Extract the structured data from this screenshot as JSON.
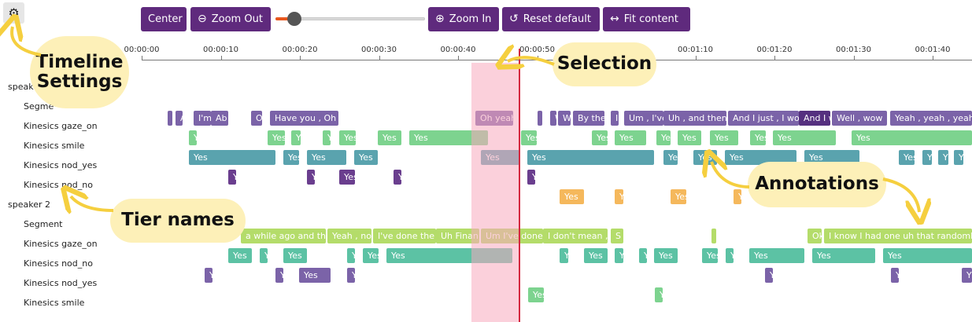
{
  "toolbar": {
    "settings_icon": "gear-icon",
    "center_label": "Center",
    "zoom_out_label": "Zoom Out",
    "zoom_in_label": "Zoom In",
    "reset_label": "Reset default",
    "fit_label": "Fit content",
    "zoom_level": 0.1
  },
  "axis": {
    "ticks": [
      "00:00:00",
      "00:00:10",
      "00:00:20",
      "00:00:30",
      "00:00:40",
      "00:00:50",
      "00:01:00",
      "00:01:10",
      "00:01:20",
      "00:01:30",
      "00:01:40"
    ]
  },
  "colors": {
    "segment": "#7b63a8",
    "segment_dark": "#55307f",
    "segment_s2": "#b4dc6a",
    "gaze_s1": "#7dd38f",
    "smile": "#5aa3ae",
    "nod": "#6a3e8e",
    "nod_no_s1": "#f5b85c",
    "gaze_s2": "#5cc2a4",
    "nod_no_s2": "#7b63a8",
    "nod_yes_s2": "#7dd38f"
  },
  "tiers": [
    {
      "label": "speak",
      "annotations": []
    },
    {
      "label": "Segme",
      "annotations": [
        {
          "start": 213,
          "end": 216,
          "text": ""
        },
        {
          "start": 223,
          "end": 232,
          "text": "A"
        },
        {
          "start": 246,
          "end": 268,
          "text": "I'm"
        },
        {
          "start": 268,
          "end": 290,
          "text": "Ab"
        },
        {
          "start": 319,
          "end": 333,
          "text": "O"
        },
        {
          "start": 343,
          "end": 430,
          "text": "Have you , Oh"
        },
        {
          "start": 604,
          "end": 652,
          "text": "Oh yeah"
        },
        {
          "start": 683,
          "end": 688,
          "text": ""
        },
        {
          "start": 699,
          "end": 707,
          "text": "W"
        },
        {
          "start": 709,
          "end": 725,
          "text": "W"
        },
        {
          "start": 728,
          "end": 768,
          "text": "By the"
        },
        {
          "start": 776,
          "end": 786,
          "text": "I"
        },
        {
          "start": 793,
          "end": 843,
          "text": "Um , I've"
        },
        {
          "start": 843,
          "end": 923,
          "text": "Uh , and then"
        },
        {
          "start": 925,
          "end": 1015,
          "text": "And I just , I wo"
        },
        {
          "start": 1015,
          "end": 1055,
          "text": "And I w",
          "dark": true
        },
        {
          "start": 1057,
          "end": 1127,
          "text": "Well , wow"
        },
        {
          "start": 1131,
          "end": 1235,
          "text": "Yeah , yeah , yeah"
        }
      ]
    },
    {
      "label": "Kinesics gaze_on",
      "annotations": [
        {
          "start": 240,
          "end": 250,
          "text": "Y"
        },
        {
          "start": 340,
          "end": 362,
          "text": "Yes"
        },
        {
          "start": 370,
          "end": 382,
          "text": "Y"
        },
        {
          "start": 410,
          "end": 420,
          "text": "Y"
        },
        {
          "start": 431,
          "end": 452,
          "text": "Yes"
        },
        {
          "start": 480,
          "end": 510,
          "text": "Yes"
        },
        {
          "start": 520,
          "end": 620,
          "text": "Yes"
        },
        {
          "start": 662,
          "end": 682,
          "text": "Yes"
        },
        {
          "start": 752,
          "end": 772,
          "text": "Yes"
        },
        {
          "start": 781,
          "end": 821,
          "text": "Yes"
        },
        {
          "start": 834,
          "end": 852,
          "text": "Yes"
        },
        {
          "start": 861,
          "end": 891,
          "text": "Yes"
        },
        {
          "start": 902,
          "end": 938,
          "text": "Yes"
        },
        {
          "start": 953,
          "end": 973,
          "text": "Yes"
        },
        {
          "start": 982,
          "end": 1062,
          "text": "Yes"
        },
        {
          "start": 1082,
          "end": 1235,
          "text": "Yes"
        }
      ]
    },
    {
      "label": "Kinesics smile",
      "annotations": [
        {
          "start": 240,
          "end": 350,
          "text": "Yes"
        },
        {
          "start": 360,
          "end": 380,
          "text": "Yes"
        },
        {
          "start": 390,
          "end": 440,
          "text": "Yes"
        },
        {
          "start": 450,
          "end": 480,
          "text": "Yes"
        },
        {
          "start": 611,
          "end": 660,
          "text": "Yes"
        },
        {
          "start": 670,
          "end": 831,
          "text": "Yes"
        },
        {
          "start": 843,
          "end": 861,
          "text": "Yes"
        },
        {
          "start": 881,
          "end": 911,
          "text": "Yes"
        },
        {
          "start": 921,
          "end": 1012,
          "text": "Yes"
        },
        {
          "start": 1022,
          "end": 1092,
          "text": "Yes"
        },
        {
          "start": 1142,
          "end": 1162,
          "text": "Yes"
        },
        {
          "start": 1172,
          "end": 1184,
          "text": "Y"
        },
        {
          "start": 1192,
          "end": 1205,
          "text": "Y"
        },
        {
          "start": 1212,
          "end": 1224,
          "text": "Y"
        }
      ]
    },
    {
      "label": "Kinesics nod_yes",
      "annotations": [
        {
          "start": 290,
          "end": 300,
          "text": "Y"
        },
        {
          "start": 390,
          "end": 400,
          "text": "Y"
        },
        {
          "start": 431,
          "end": 451,
          "text": "Yes"
        },
        {
          "start": 500,
          "end": 510,
          "text": "Y"
        },
        {
          "start": 670,
          "end": 680,
          "text": "Y"
        },
        {
          "start": 1062,
          "end": 1072,
          "text": ""
        }
      ]
    },
    {
      "label": "Kinesics nod_no",
      "annotations": [
        {
          "start": 711,
          "end": 742,
          "text": "Yes"
        },
        {
          "start": 781,
          "end": 792,
          "text": "Y"
        },
        {
          "start": 852,
          "end": 872,
          "text": "Yes"
        },
        {
          "start": 932,
          "end": 942,
          "text": "Y"
        }
      ]
    },
    {
      "label": "speaker 2",
      "annotations": []
    },
    {
      "label": "Segment",
      "annotations": [
        {
          "start": 306,
          "end": 414,
          "text": "a while ago and then"
        },
        {
          "start": 416,
          "end": 472,
          "text": "Yeah , not"
        },
        {
          "start": 474,
          "end": 554,
          "text": "I've done the l"
        },
        {
          "start": 554,
          "end": 609,
          "text": "Uh Finan"
        },
        {
          "start": 611,
          "end": 690,
          "text": "Um I've done"
        },
        {
          "start": 690,
          "end": 772,
          "text": "I don't mean , y"
        },
        {
          "start": 776,
          "end": 792,
          "text": "S"
        },
        {
          "start": 904,
          "end": 910,
          "text": ""
        },
        {
          "start": 1026,
          "end": 1044,
          "text": "Ok"
        },
        {
          "start": 1047,
          "end": 1235,
          "text": "I know I had one uh that randomly"
        }
      ]
    },
    {
      "label": "Kinesics gaze_on",
      "annotations": [
        {
          "start": 290,
          "end": 320,
          "text": "Yes"
        },
        {
          "start": 330,
          "end": 340,
          "text": "Y"
        },
        {
          "start": 360,
          "end": 390,
          "text": "Yes"
        },
        {
          "start": 441,
          "end": 451,
          "text": "Y"
        },
        {
          "start": 461,
          "end": 481,
          "text": "Yes"
        },
        {
          "start": 491,
          "end": 651,
          "text": "Yes"
        },
        {
          "start": 711,
          "end": 722,
          "text": "Y"
        },
        {
          "start": 742,
          "end": 772,
          "text": "Yes"
        },
        {
          "start": 781,
          "end": 792,
          "text": "Y"
        },
        {
          "start": 812,
          "end": 822,
          "text": "Y"
        },
        {
          "start": 831,
          "end": 861,
          "text": "Yes"
        },
        {
          "start": 892,
          "end": 912,
          "text": "Yes"
        },
        {
          "start": 922,
          "end": 932,
          "text": "Y"
        },
        {
          "start": 952,
          "end": 1022,
          "text": "Yes"
        },
        {
          "start": 1032,
          "end": 1112,
          "text": "Yes"
        },
        {
          "start": 1122,
          "end": 1235,
          "text": "Yes"
        }
      ]
    },
    {
      "label": "Kinesics nod_no",
      "annotations": [
        {
          "start": 260,
          "end": 270,
          "text": "Y"
        },
        {
          "start": 350,
          "end": 360,
          "text": "Y"
        },
        {
          "start": 380,
          "end": 420,
          "text": "Yes"
        },
        {
          "start": 441,
          "end": 451,
          "text": "Y"
        },
        {
          "start": 972,
          "end": 982,
          "text": "Y"
        },
        {
          "start": 1132,
          "end": 1142,
          "text": "Y"
        },
        {
          "start": 1222,
          "end": 1235,
          "text": "Y"
        }
      ]
    },
    {
      "label": "Kinesics nod_yes",
      "annotations": [
        {
          "start": 671,
          "end": 691,
          "text": "Yes"
        },
        {
          "start": 832,
          "end": 842,
          "text": "Y"
        }
      ]
    },
    {
      "label": "Kinesics smile",
      "annotations": []
    }
  ],
  "callouts": {
    "timeline_settings": "Timeline Settings",
    "selection": "Selection",
    "annotations": "Annotations",
    "tier_names": "Tier names"
  }
}
